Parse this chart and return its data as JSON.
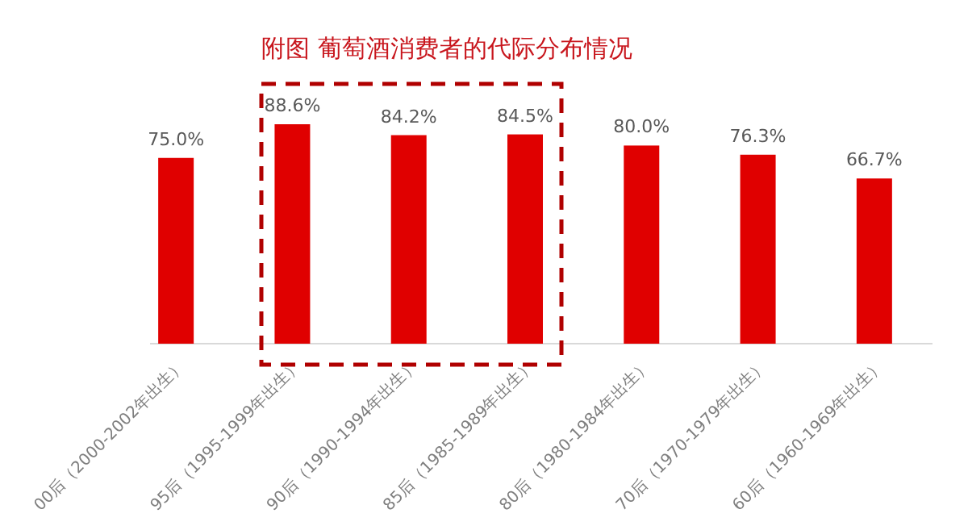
{
  "chart_data": {
    "type": "bar",
    "title": "附图  葡萄酒消费者的代际分布情况",
    "categories": [
      "00后（2000-2002年出生）",
      "95后（1995-1999年出生）",
      "90后（1990-1994年出生）",
      "85后（1985-1989年出生）",
      "80后（1980-1984年出生）",
      "70后（1970-1979年出生）",
      "60后（1960-1969年出生）"
    ],
    "values": [
      75.0,
      88.6,
      84.2,
      84.5,
      80.0,
      76.3,
      66.7
    ],
    "value_labels": [
      "75.0%",
      "88.6%",
      "84.2%",
      "84.5%",
      "80.0%",
      "76.3%",
      "66.7%"
    ],
    "color": "#e00000"
  }
}
